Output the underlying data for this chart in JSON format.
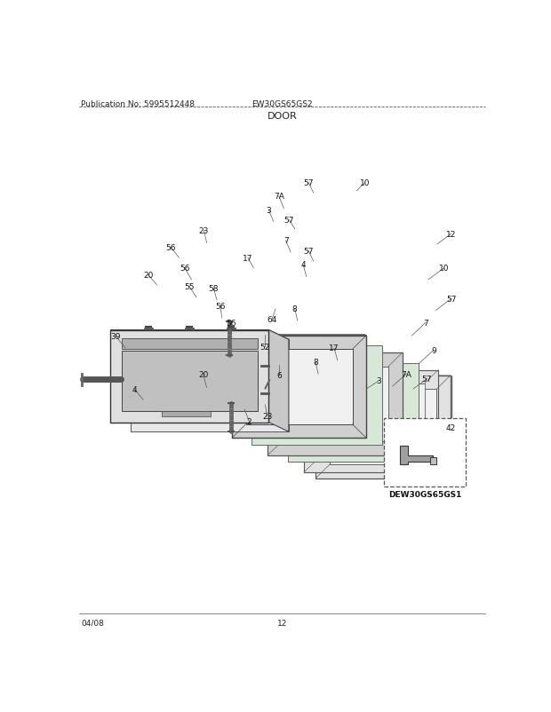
{
  "title": "DOOR",
  "pub_no": "Publication No: 5995512448",
  "model": "EW30GS65GS2",
  "date": "04/08",
  "page": "12",
  "sub_model": "DEW30GS65GS1",
  "bg_color": "#ffffff",
  "text_color": "#222222",
  "line_color": "#555555",
  "dashed_line_color": "#888888",
  "panel_edge": "#444444",
  "panel_gray": "#d8d8d8",
  "panel_light": "#eeeeee",
  "panel_mid": "#c8c8c8"
}
